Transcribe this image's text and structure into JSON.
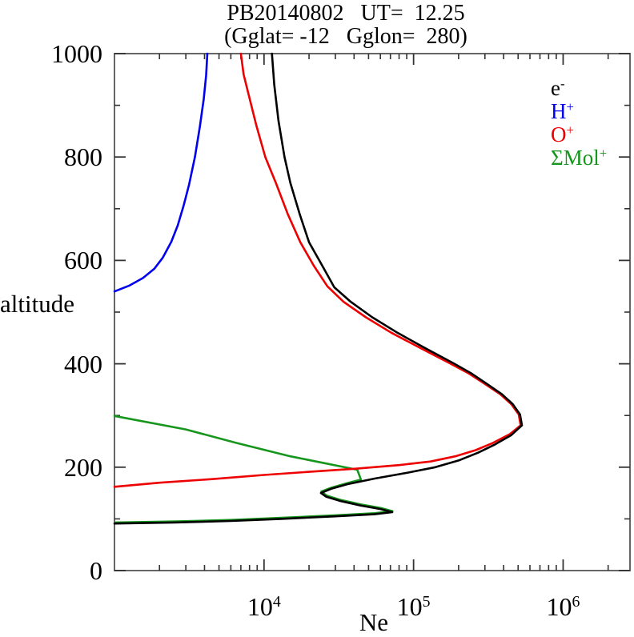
{
  "header": {
    "title": "PB20140802   UT=  12.25",
    "subtitle": "(Gglat= -12   Gglon=  280)"
  },
  "chart_data": {
    "type": "line",
    "title": "PB20140802 UT= 12.25 (Gglat= -12 Gglon= 280)",
    "xlabel": "Ne",
    "ylabel": "altitude",
    "x_scale": "log",
    "y_scale": "linear",
    "xlim": [
      1000,
      2800000
    ],
    "ylim": [
      0,
      1000
    ],
    "grid": false,
    "frame_color": "#666666",
    "tick_color": "#333333",
    "x_major_ticks": [
      {
        "value": 10000,
        "base": "10",
        "sup": "4"
      },
      {
        "value": 100000,
        "base": "10",
        "sup": "5"
      },
      {
        "value": 1000000,
        "base": "10",
        "sup": "6"
      }
    ],
    "y_major_ticks": [
      0,
      200,
      400,
      600,
      800,
      1000
    ],
    "y_minor_ticks": [
      100,
      300,
      500,
      700,
      900
    ],
    "legend_position": "top-right-inside",
    "series": [
      {
        "name": "electrons",
        "label_base": "e",
        "label_sup": "-",
        "color": "#000000",
        "points_unit": "[Ne cm^-3, altitude km]",
        "points": [
          [
            1000,
            91
          ],
          [
            2500,
            93
          ],
          [
            6000,
            96
          ],
          [
            13000,
            100
          ],
          [
            30000,
            105
          ],
          [
            55000,
            109
          ],
          [
            72000,
            113
          ],
          [
            60000,
            119
          ],
          [
            44000,
            126
          ],
          [
            32000,
            135
          ],
          [
            26000,
            143
          ],
          [
            24000,
            150
          ],
          [
            28000,
            158
          ],
          [
            36000,
            167
          ],
          [
            55000,
            178
          ],
          [
            90000,
            189
          ],
          [
            140000,
            200
          ],
          [
            200000,
            213
          ],
          [
            270000,
            228
          ],
          [
            350000,
            244
          ],
          [
            450000,
            262
          ],
          [
            530000,
            281
          ],
          [
            515000,
            302
          ],
          [
            460000,
            322
          ],
          [
            390000,
            341
          ],
          [
            310000,
            361
          ],
          [
            245000,
            381
          ],
          [
            185000,
            401
          ],
          [
            120000,
            430
          ],
          [
            78000,
            460
          ],
          [
            53000,
            490
          ],
          [
            38000,
            520
          ],
          [
            29500,
            548
          ],
          [
            24500,
            590
          ],
          [
            20000,
            635
          ],
          [
            17300,
            690
          ],
          [
            15000,
            750
          ],
          [
            13700,
            800
          ],
          [
            12500,
            870
          ],
          [
            11700,
            940
          ],
          [
            11300,
            1000
          ]
        ]
      },
      {
        "name": "hydrogen-ions",
        "label_base": "H",
        "label_sup": "+",
        "color": "#0000ee",
        "points_unit": "[Ne cm^-3, altitude km]",
        "points": [
          [
            1000,
            540
          ],
          [
            1250,
            551
          ],
          [
            1550,
            566
          ],
          [
            1850,
            584
          ],
          [
            2100,
            605
          ],
          [
            2400,
            636
          ],
          [
            2650,
            668
          ],
          [
            2900,
            706
          ],
          [
            3150,
            746
          ],
          [
            3450,
            800
          ],
          [
            3720,
            858
          ],
          [
            3950,
            912
          ],
          [
            4100,
            958
          ],
          [
            4180,
            1000
          ]
        ]
      },
      {
        "name": "oxygen-ions",
        "label_base": "O",
        "label_sup": "+",
        "color": "#ee0000",
        "points_unit": "[Ne cm^-3, altitude km]",
        "points": [
          [
            1000,
            162
          ],
          [
            2000,
            170
          ],
          [
            4500,
            177
          ],
          [
            10000,
            185
          ],
          [
            20000,
            191
          ],
          [
            41000,
            197
          ],
          [
            80000,
            204
          ],
          [
            130000,
            211
          ],
          [
            190000,
            221
          ],
          [
            260000,
            233
          ],
          [
            340000,
            247
          ],
          [
            440000,
            264
          ],
          [
            520000,
            281
          ],
          [
            505000,
            302
          ],
          [
            450000,
            322
          ],
          [
            380000,
            341
          ],
          [
            300000,
            361
          ],
          [
            235000,
            381
          ],
          [
            175000,
            401
          ],
          [
            112000,
            430
          ],
          [
            71000,
            460
          ],
          [
            48000,
            490
          ],
          [
            34000,
            520
          ],
          [
            26500,
            550
          ],
          [
            21500,
            590
          ],
          [
            17500,
            635
          ],
          [
            14400,
            690
          ],
          [
            12000,
            750
          ],
          [
            10200,
            800
          ],
          [
            8900,
            860
          ],
          [
            7900,
            920
          ],
          [
            7300,
            960
          ],
          [
            7000,
            1000
          ]
        ]
      },
      {
        "name": "sum-molecular-ions",
        "label_base": "ΣMol",
        "label_sup": "+",
        "color": "#17961d",
        "points_unit": "[Ne cm^-3, altitude km]",
        "points": [
          [
            1000,
            299
          ],
          [
            3000,
            273
          ],
          [
            6500,
            247
          ],
          [
            15000,
            221
          ],
          [
            42000,
            195
          ],
          [
            44500,
            176
          ],
          [
            36000,
            169
          ],
          [
            28000,
            160
          ],
          [
            24200,
            153
          ],
          [
            26200,
            145
          ],
          [
            32200,
            137
          ],
          [
            44200,
            128
          ],
          [
            60200,
            121
          ],
          [
            72300,
            115
          ],
          [
            55200,
            111
          ],
          [
            30200,
            107
          ],
          [
            13100,
            102
          ],
          [
            6100,
            98
          ],
          [
            2600,
            95
          ],
          [
            1020,
            93
          ]
        ]
      }
    ],
    "annotations": {
      "f2_peak": {
        "altitude_km": 281,
        "Ne": 530000
      },
      "e_layer_peak": {
        "altitude_km": 113,
        "Ne": 72000
      },
      "valley": {
        "altitude_km": 150,
        "Ne": 24000
      }
    }
  }
}
